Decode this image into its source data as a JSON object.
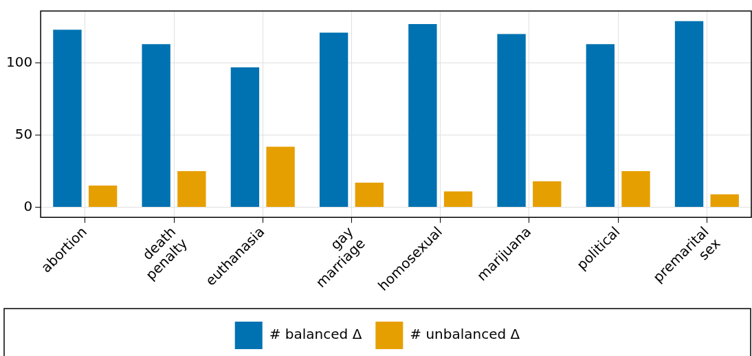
{
  "chart_data": {
    "type": "bar",
    "categories": [
      "abortion",
      "death penalty",
      "euthanasia",
      "gay marriage",
      "homosexual",
      "marijuana",
      "political",
      "premarital sex"
    ],
    "series": [
      {
        "name": "# balanced Δ",
        "color": "#0072b2",
        "values": [
          123,
          113,
          97,
          121,
          127,
          120,
          113,
          129
        ]
      },
      {
        "name": "# unbalanced Δ",
        "color": "#e69f00",
        "values": [
          15,
          25,
          42,
          17,
          11,
          18,
          25,
          9
        ]
      }
    ],
    "ylim": [
      -7,
      136
    ],
    "yticks": [
      0,
      50,
      100
    ],
    "grid": true,
    "legend": "bottom"
  }
}
